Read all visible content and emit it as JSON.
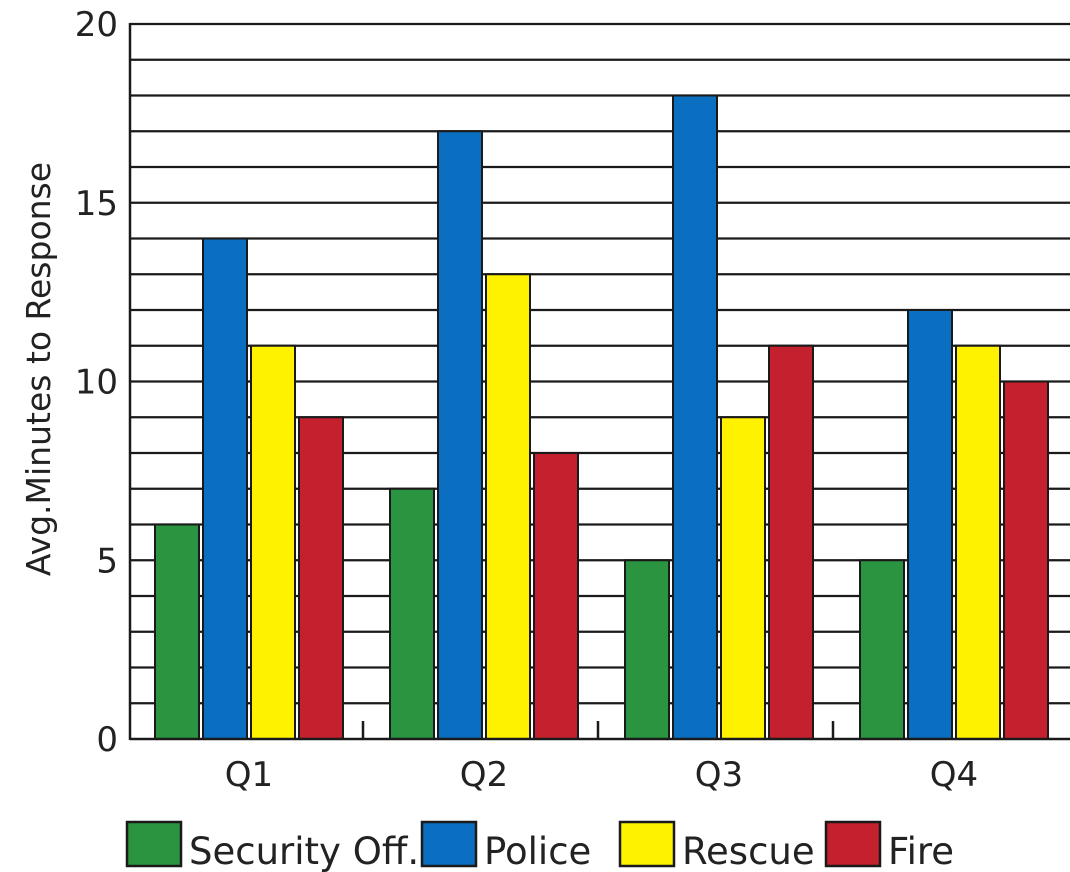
{
  "chart_data": {
    "type": "bar",
    "title": "",
    "xlabel": "",
    "ylabel": "Avg.Minutes to Response",
    "ylim": [
      0,
      20
    ],
    "y_ticks": [
      "0",
      "5",
      "10",
      "15",
      "20"
    ],
    "grid": true,
    "grid_step": 1,
    "legend_position": "bottom",
    "categories": [
      "Q1",
      "Q2",
      "Q3",
      "Q4"
    ],
    "series": [
      {
        "name": "Security Off.",
        "color": "#2a9440",
        "values": [
          6,
          7,
          5,
          5
        ]
      },
      {
        "name": "Police",
        "color": "#0a6fc0",
        "values": [
          14,
          17,
          18,
          12
        ]
      },
      {
        "name": "Rescue",
        "color": "#fff200",
        "values": [
          11,
          13,
          9,
          11
        ]
      },
      {
        "name": "Fire",
        "color": "#c4202e",
        "values": [
          9,
          8,
          11,
          10
        ]
      }
    ]
  }
}
